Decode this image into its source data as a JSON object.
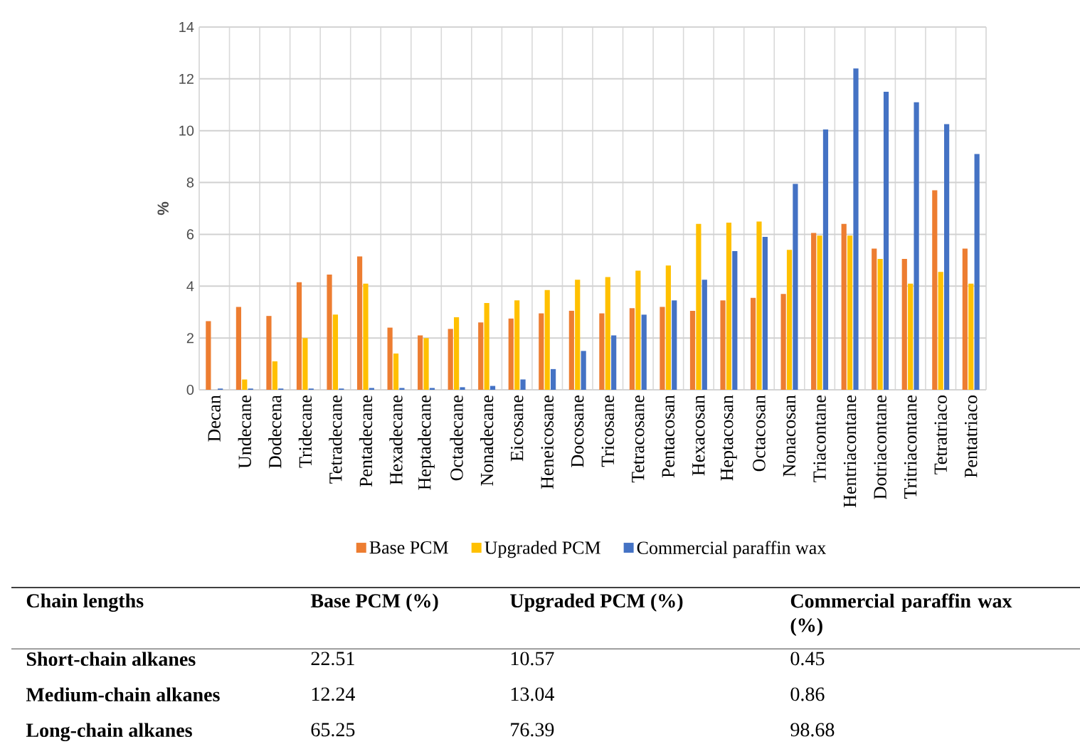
{
  "chart_data": {
    "type": "bar",
    "ylabel": "%",
    "categories": [
      "Decan",
      "Undecane",
      "Dodecena",
      "Tridecane",
      "Tetradecane",
      "Pentadecane",
      "Hexadecane",
      "Heptadecane",
      "Octadecane",
      "Nonadecane",
      "Eicosane",
      "Heneicosane",
      "Docosane",
      "Tricosane",
      "Tetracosane",
      "Pentacosan",
      "Hexacosan",
      "Heptacosan",
      "Octacosan",
      "Nonacosan",
      "Triacontane",
      "Hentriacontane",
      "Dotriacontane",
      "Tritriacontane",
      "Tetratriaco",
      "Pentatriaco"
    ],
    "series": [
      {
        "name": "Base PCM",
        "color": "#ed7d31",
        "values": [
          2.65,
          3.2,
          2.85,
          4.15,
          4.45,
          5.15,
          2.4,
          2.1,
          2.35,
          2.6,
          2.75,
          2.95,
          3.05,
          2.95,
          3.15,
          3.2,
          3.05,
          3.45,
          3.55,
          3.7,
          6.05,
          6.4,
          5.45,
          5.05,
          7.7,
          5.45
        ]
      },
      {
        "name": "Upgraded PCM",
        "color": "#ffc000",
        "values": [
          0,
          0.4,
          1.1,
          2.0,
          2.9,
          4.1,
          1.4,
          2.0,
          2.8,
          3.35,
          3.45,
          3.85,
          4.25,
          4.35,
          4.6,
          4.8,
          6.4,
          6.45,
          6.5,
          5.4,
          5.95,
          5.95,
          5.05,
          4.1,
          4.55,
          4.1
        ]
      },
      {
        "name": "Commercial paraffin wax",
        "color": "#4472c4",
        "values": [
          0.05,
          0.05,
          0.05,
          0.05,
          0.05,
          0.07,
          0.07,
          0.07,
          0.1,
          0.15,
          0.4,
          0.8,
          1.5,
          2.1,
          2.9,
          3.45,
          4.25,
          5.35,
          5.9,
          7.95,
          10.05,
          12.4,
          11.5,
          11.1,
          10.25,
          9.1
        ]
      }
    ],
    "ylim": [
      0,
      14
    ],
    "yticks": [
      0,
      2,
      4,
      6,
      8,
      10,
      12,
      14
    ],
    "grid": true,
    "legend": "bottom",
    "annotations": [
      "Chain lengths",
      "Base PCM (%)",
      "Upgraded PCM (%)",
      "Commercial paraffin wax (%)",
      "Short-chain alkanes",
      "22.51",
      "10.57",
      "0.45",
      "Medium-chain alkanes",
      "12.24",
      "13.04",
      "0.86",
      "Long-chain alkanes",
      "65.25",
      "76.39",
      "98.68"
    ]
  }
}
